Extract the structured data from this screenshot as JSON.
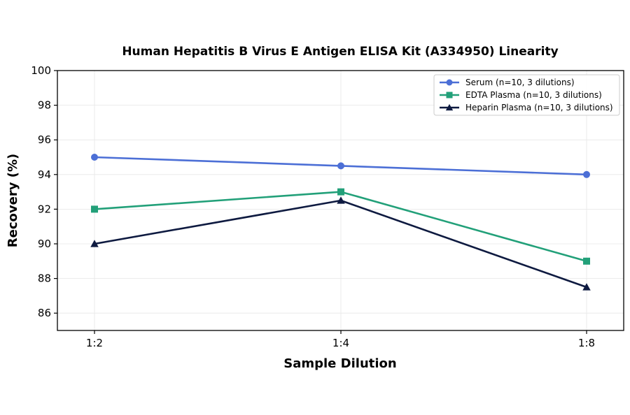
{
  "chart_data": {
    "type": "line",
    "title": "Human Hepatitis B Virus E Antigen ELISA Kit (A334950) Linearity",
    "xlabel": "Sample Dilution",
    "ylabel": "Recovery (%)",
    "categories": [
      "1:2",
      "1:4",
      "1:8"
    ],
    "ylim": [
      85,
      100
    ],
    "yticks": [
      86,
      88,
      90,
      92,
      94,
      96,
      98,
      100
    ],
    "grid": true,
    "legend_position": "top-right",
    "series": [
      {
        "name": "Serum (n=10, 3 dilutions)",
        "values": [
          95,
          94.5,
          94
        ],
        "color": "#4C6FD6",
        "marker": "circle"
      },
      {
        "name": "EDTA Plasma (n=10, 3 dilutions)",
        "values": [
          92,
          93,
          89
        ],
        "color": "#22A079",
        "marker": "square"
      },
      {
        "name": "Heparin Plasma (n=10, 3 dilutions)",
        "values": [
          90,
          92.5,
          87.5
        ],
        "color": "#0E1A40",
        "marker": "triangle"
      }
    ]
  }
}
